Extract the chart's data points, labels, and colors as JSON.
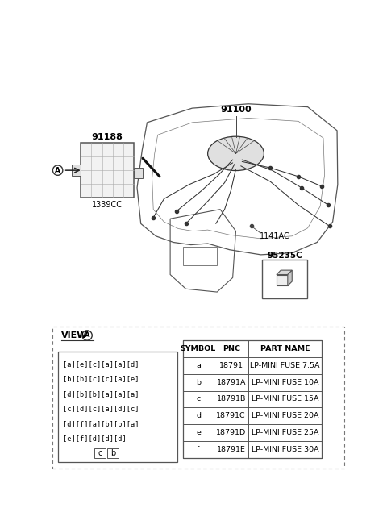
{
  "bg_color": "#ffffff",
  "part_label_91100": "91100",
  "part_label_91188": "91188",
  "part_label_1339CC": "1339CC",
  "part_label_1141AC": "1141AC",
  "part_label_95235C": "95235C",
  "symbol_col": "SYMBOL",
  "pnc_col": "PNC",
  "part_name_col": "PART NAME",
  "table_data": [
    [
      "a",
      "18791",
      "LP-MINI FUSE 7.5A"
    ],
    [
      "b",
      "18791A",
      "LP-MINI FUSE 10A"
    ],
    [
      "c",
      "18791B",
      "LP-MINI FUSE 15A"
    ],
    [
      "d",
      "18791C",
      "LP-MINI FUSE 20A"
    ],
    [
      "e",
      "18791D",
      "LP-MINI FUSE 25A"
    ],
    [
      "f",
      "18791E",
      "LP-MINI FUSE 30A"
    ]
  ],
  "fuse_grid_rows": [
    "[a][e][c][a][a][d]",
    "[b][b][c][c][a][e]",
    "[d][b][b][a][a][a]",
    "[c][d][c][a][d][c]",
    "[d][f][a][b][b][a]",
    "[e][f][d][d][d]"
  ],
  "fuse_bottom_labels": [
    "c",
    "b"
  ]
}
